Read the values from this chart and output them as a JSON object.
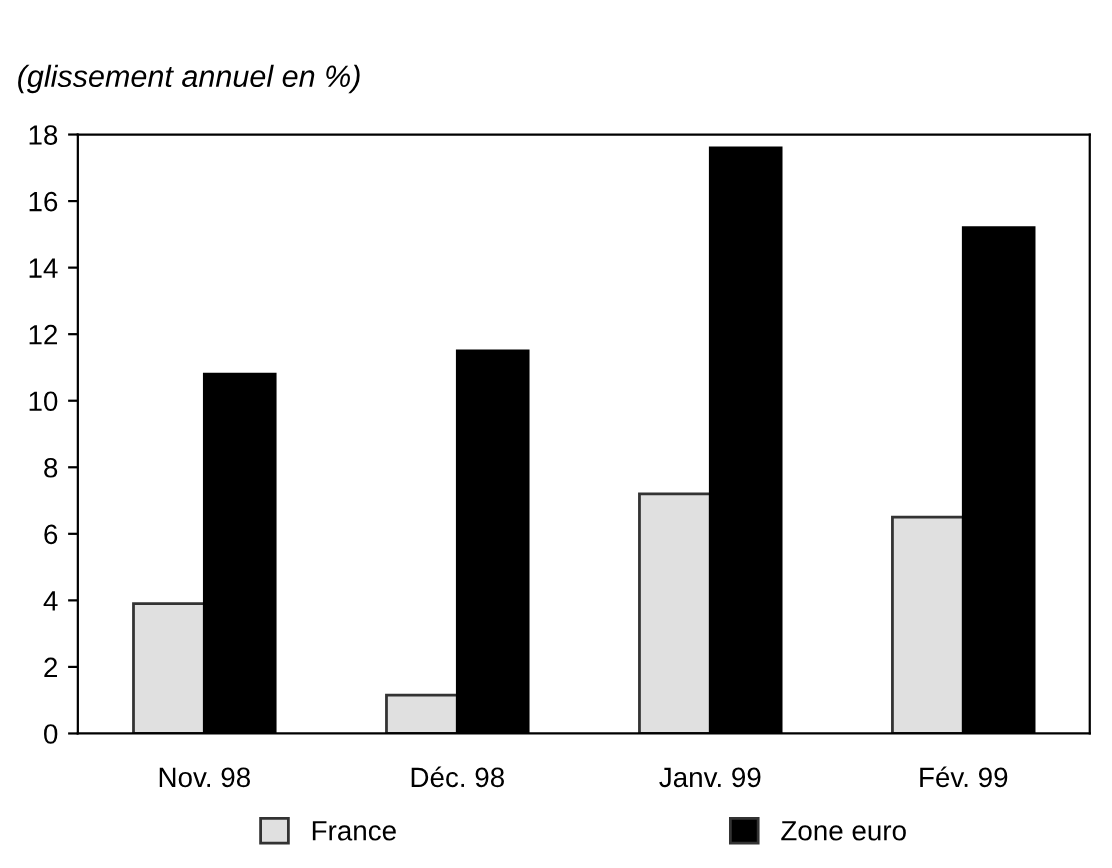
{
  "chart_data": {
    "type": "bar",
    "title": "(glissement annuel en %)",
    "categories": [
      "Nov. 98",
      "Déc. 98",
      "Janv. 99",
      "Fév. 99"
    ],
    "series": [
      {
        "name": "France",
        "color": "#e0e0e0",
        "values": [
          3.9,
          1.15,
          7.2,
          6.5
        ]
      },
      {
        "name": "Zone euro",
        "color": "#000000",
        "values": [
          10.8,
          11.5,
          17.6,
          15.2
        ]
      }
    ],
    "ylim": [
      0,
      18
    ],
    "yticks": [
      0,
      2,
      4,
      6,
      8,
      10,
      12,
      14,
      16,
      18
    ],
    "grid": false,
    "legend": "bottom"
  }
}
